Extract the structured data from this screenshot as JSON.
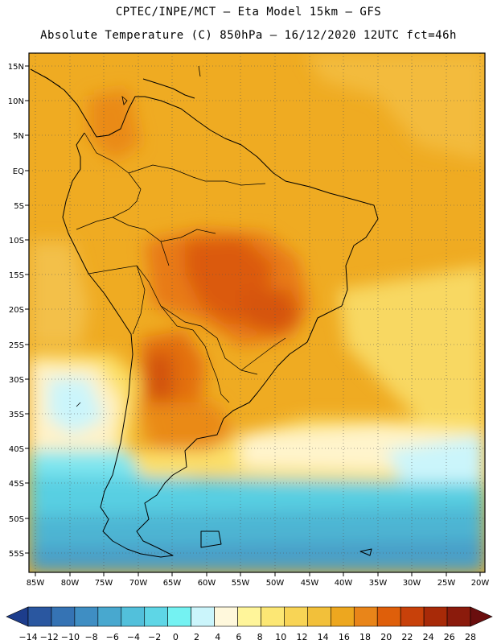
{
  "title_line1": "CPTEC/INPE/MCT –  Eta Model 15km – GFS",
  "title_line2": "Absolute Temperature (C) 850hPa – 16/12/2020 12UTC fct=46h",
  "lat_labels": [
    "15N",
    "10N",
    "5N",
    "EQ",
    "5S",
    "10S",
    "15S",
    "20S",
    "25S",
    "30S",
    "35S",
    "40S",
    "45S",
    "50S",
    "55S"
  ],
  "lon_labels": [
    "85W",
    "80W",
    "75W",
    "70W",
    "65W",
    "60W",
    "55W",
    "50W",
    "45W",
    "40W",
    "35W",
    "30W",
    "25W",
    "20W"
  ],
  "colorbar": {
    "colors": [
      "#1d3d8c",
      "#2a57a0",
      "#3573b4",
      "#3f8ec3",
      "#48a8cf",
      "#52c0db",
      "#5ed6e6",
      "#74f2f2",
      "#cbf5fb",
      "#fff8dc",
      "#fff59a",
      "#fce774",
      "#f8d455",
      "#f2c03a",
      "#eda71f",
      "#e98519",
      "#df5f0a",
      "#c8410a",
      "#a82a08",
      "#8b1b0c",
      "#6a0e0e"
    ],
    "labels": [
      "-14",
      "-12",
      "-10",
      "-8",
      "-6",
      "-4",
      "-2",
      "0",
      "2",
      "4",
      "6",
      "8",
      "10",
      "12",
      "14",
      "16",
      "18",
      "20",
      "22",
      "24",
      "26",
      "28"
    ]
  }
}
